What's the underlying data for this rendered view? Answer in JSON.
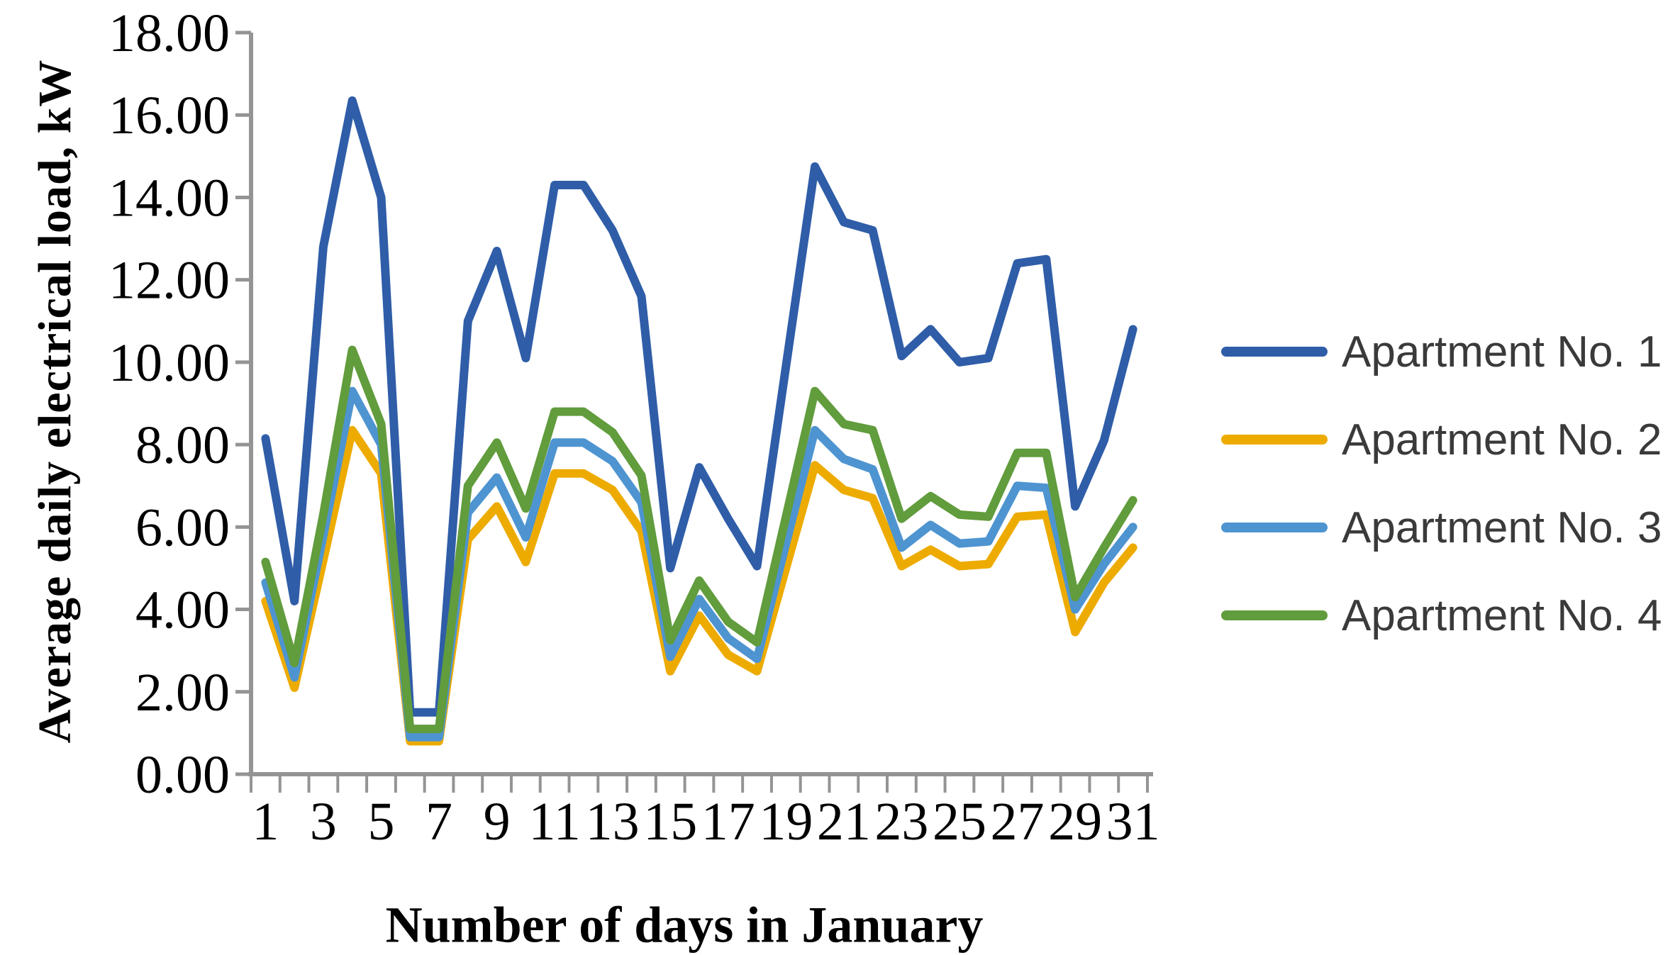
{
  "chart_data": {
    "type": "line",
    "title": "",
    "xlabel": "Number of days in January",
    "ylabel": "Average daily electrical load, kW",
    "x": [
      1,
      2,
      3,
      4,
      5,
      6,
      7,
      8,
      9,
      10,
      11,
      12,
      13,
      14,
      15,
      16,
      17,
      18,
      19,
      20,
      21,
      22,
      23,
      24,
      25,
      26,
      27,
      28,
      29,
      30,
      31
    ],
    "x_tick_labels": [
      "1",
      "3",
      "5",
      "7",
      "9",
      "11",
      "13",
      "15",
      "17",
      "19",
      "21",
      "23",
      "25",
      "27",
      "29",
      "31"
    ],
    "y_tick_values": [
      0,
      2,
      4,
      6,
      8,
      10,
      12,
      14,
      16,
      18
    ],
    "y_tick_labels": [
      "0.00",
      "2.00",
      "4.00",
      "6.00",
      "8.00",
      "10.00",
      "12.00",
      "14.00",
      "16.00",
      "18.00"
    ],
    "ylim": [
      0,
      18
    ],
    "xlim_days": [
      1,
      31
    ],
    "grid": false,
    "legend_position": "right",
    "series": [
      {
        "name": "Apartment No. 1",
        "color": "#2F5DA8",
        "values": [
          8.15,
          4.2,
          12.8,
          16.35,
          14.0,
          1.5,
          1.5,
          11.0,
          12.7,
          10.1,
          14.3,
          14.3,
          13.2,
          11.6,
          5.0,
          7.45,
          6.2,
          5.05,
          9.9,
          14.75,
          13.4,
          13.2,
          10.15,
          10.8,
          10.0,
          10.1,
          12.4,
          12.5,
          6.5,
          8.1,
          10.8
        ]
      },
      {
        "name": "Apartment No. 2",
        "color": "#EDAB00",
        "values": [
          4.2,
          2.1,
          5.2,
          8.35,
          7.3,
          0.8,
          0.8,
          5.7,
          6.5,
          5.15,
          7.3,
          7.3,
          6.9,
          5.9,
          2.5,
          3.85,
          2.9,
          2.5,
          5.0,
          7.5,
          6.9,
          6.7,
          5.05,
          5.45,
          5.05,
          5.1,
          6.25,
          6.3,
          3.45,
          4.65,
          5.5
        ]
      },
      {
        "name": "Apartment No. 3",
        "color": "#4E94D0",
        "values": [
          4.65,
          2.35,
          5.8,
          9.3,
          8.0,
          0.9,
          0.9,
          6.35,
          7.2,
          5.75,
          8.05,
          8.05,
          7.6,
          6.6,
          2.85,
          4.25,
          3.3,
          2.8,
          5.6,
          8.35,
          7.65,
          7.4,
          5.5,
          6.05,
          5.6,
          5.65,
          7.0,
          6.95,
          4.0,
          5.1,
          6.0
        ]
      },
      {
        "name": "Apartment No. 4",
        "color": "#619C3D",
        "values": [
          5.15,
          2.7,
          6.3,
          10.3,
          8.5,
          1.1,
          1.1,
          7.0,
          8.05,
          6.45,
          8.8,
          8.8,
          8.3,
          7.25,
          3.25,
          4.7,
          3.7,
          3.2,
          6.25,
          9.3,
          8.5,
          8.35,
          6.2,
          6.75,
          6.3,
          6.25,
          7.8,
          7.8,
          4.3,
          5.5,
          6.65
        ]
      }
    ],
    "axis_color": "#949494",
    "tick_text_color": "#000000",
    "line_width": 12
  }
}
